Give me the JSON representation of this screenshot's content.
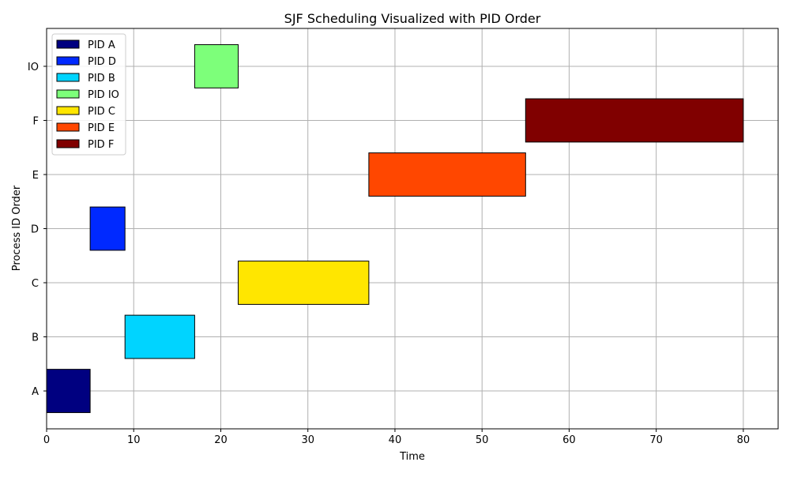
{
  "chart_data": {
    "type": "bar",
    "orientation": "horizontal",
    "title": "SJF Scheduling Visualized with PID Order",
    "xlabel": "Time",
    "ylabel": "Process ID Order",
    "xlim": [
      0,
      84
    ],
    "x_ticks": [
      "0",
      "10",
      "20",
      "30",
      "40",
      "50",
      "60",
      "70",
      "80"
    ],
    "categories": [
      "A",
      "B",
      "C",
      "D",
      "E",
      "F",
      "IO"
    ],
    "grid": true,
    "legend_position": "top-left",
    "series": [
      {
        "name": "PID A",
        "category": "A",
        "start": 0,
        "end": 5,
        "color": "#000080"
      },
      {
        "name": "PID D",
        "category": "D",
        "start": 5,
        "end": 9,
        "color": "#0029ff"
      },
      {
        "name": "PID B",
        "category": "B",
        "start": 9,
        "end": 17,
        "color": "#00d4ff"
      },
      {
        "name": "PID IO",
        "category": "IO",
        "start": 17,
        "end": 22,
        "color": "#7dff7a"
      },
      {
        "name": "PID C",
        "category": "C",
        "start": 22,
        "end": 37,
        "color": "#ffe600"
      },
      {
        "name": "PID E",
        "category": "E",
        "start": 37,
        "end": 55,
        "color": "#ff4700"
      },
      {
        "name": "PID F",
        "category": "F",
        "start": 55,
        "end": 80,
        "color": "#800000"
      }
    ]
  }
}
